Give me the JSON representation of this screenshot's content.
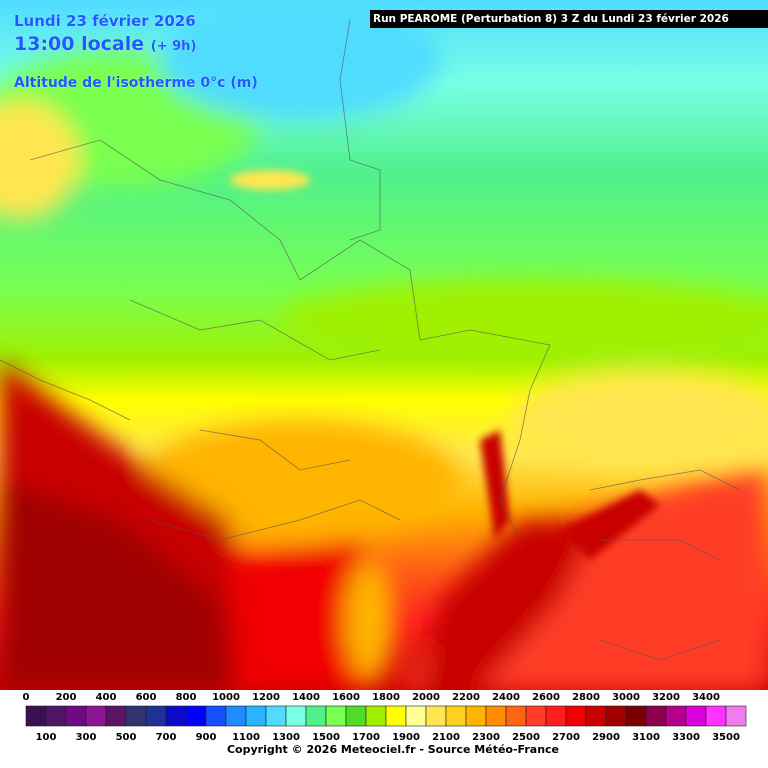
{
  "header": {
    "date": "Lundi 23 février 2026",
    "time": "13:00 locale",
    "offset": "(+ 9h)",
    "field": "Altitude de l'isotherme 0°c (m)",
    "run": "Run PEAROME (Perturbation 8) 3 Z du Lundi 23 février 2026"
  },
  "legend": {
    "values": [
      0,
      100,
      200,
      300,
      400,
      500,
      600,
      700,
      800,
      900,
      1000,
      1100,
      1200,
      1300,
      1400,
      1500,
      1600,
      1700,
      1800,
      1900,
      2000,
      2100,
      2200,
      2300,
      2400,
      2500,
      2600,
      2700,
      2800,
      2900,
      3000,
      3100,
      3200,
      3300,
      3400,
      3500
    ],
    "colors": [
      "#3c0f50",
      "#501464",
      "#6e0a82",
      "#8a1696",
      "#5a1464",
      "#32326e",
      "#1e3296",
      "#0a0ac8",
      "#0000ff",
      "#1450ff",
      "#1e8cff",
      "#28b4ff",
      "#50dcff",
      "#78ffe6",
      "#50f08c",
      "#78ff50",
      "#50dc28",
      "#a0f000",
      "#ffff00",
      "#ffff96",
      "#ffe650",
      "#ffd21e",
      "#ffb400",
      "#ff8c00",
      "#ff6414",
      "#ff3c28",
      "#ff1e1e",
      "#f00000",
      "#c80000",
      "#a00000",
      "#780000",
      "#8c0050",
      "#b4008c",
      "#dc00dc",
      "#ff32ff",
      "#f07cf0"
    ]
  },
  "footer": {
    "copyright": "Copyright © 2026 Meteociel.fr - Source Météo-France"
  }
}
